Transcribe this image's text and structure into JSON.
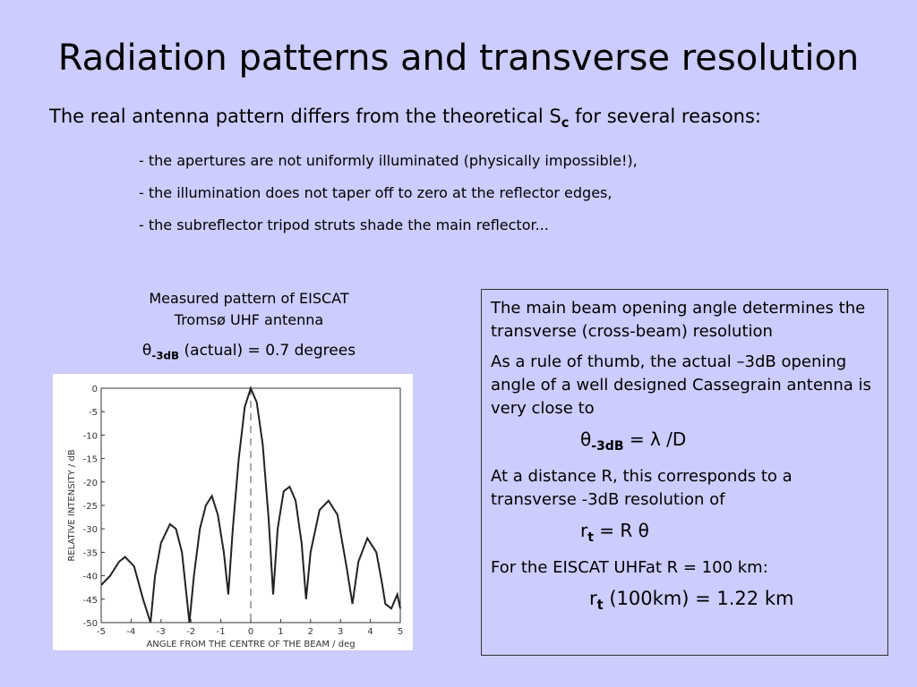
{
  "title": "Radiation patterns and transverse resolution",
  "intro": {
    "text": "The real antenna pattern differs from the theoretical S",
    "sub": "c",
    "tail": " for several reasons:"
  },
  "reasons": [
    "- the apertures are not uniformly illuminated (physically impossible!),",
    "- the illumination does not taper off to zero at the reflector edges,",
    "- the subreflector tripod struts shade the main reflector..."
  ],
  "figure": {
    "caption": [
      "Measured pattern of EISCAT",
      "Tromsø UHF antenna"
    ],
    "theta": {
      "symbol": "θ",
      "sub": "-3dB",
      "text": " (actual) = 0.7 degrees"
    }
  },
  "chart_data": {
    "type": "line",
    "xlabel": "ANGLE FROM THE CENTRE OF THE BEAM / deg",
    "ylabel": "RELATIVE INTENSITY / dB",
    "x": [
      -5,
      -4.7,
      -4.4,
      -4.2,
      -3.9,
      -3.6,
      -3.35,
      -3.2,
      -3.0,
      -2.7,
      -2.5,
      -2.3,
      -2.05,
      -1.9,
      -1.7,
      -1.5,
      -1.3,
      -1.1,
      -0.9,
      -0.75,
      -0.6,
      -0.4,
      -0.2,
      0,
      0.2,
      0.4,
      0.6,
      0.75,
      0.9,
      1.1,
      1.3,
      1.5,
      1.7,
      1.85,
      2.0,
      2.3,
      2.6,
      2.9,
      3.2,
      3.4,
      3.6,
      3.9,
      4.2,
      4.4,
      4.5,
      4.7,
      4.9,
      5
    ],
    "series": [
      {
        "color": "#222222",
        "values": [
          -42,
          -40,
          -37,
          -36,
          -38,
          -45,
          -50,
          -40,
          -33,
          -29,
          -30,
          -35,
          -50,
          -40,
          -30,
          -25,
          -23,
          -27,
          -35,
          -44,
          -30,
          -15,
          -4,
          0,
          -3,
          -12,
          -28,
          -44,
          -30,
          -22,
          -21,
          -24,
          -33,
          -45,
          -35,
          -26,
          -24,
          -27,
          -38,
          -46,
          -37,
          -32,
          -35,
          -42,
          -46,
          -47,
          -44,
          -47
        ]
      }
    ],
    "xlim": [
      -5,
      5
    ],
    "ylim": [
      -50,
      0
    ],
    "xticks": [
      -5,
      -4,
      -3,
      -2,
      -1,
      0,
      1,
      2,
      3,
      4,
      5
    ],
    "yticks": [
      0,
      -5,
      -10,
      -15,
      -20,
      -25,
      -30,
      -35,
      -40,
      -45,
      -50
    ]
  },
  "box": {
    "p1": "The main beam opening angle determines the transverse (cross-beam) resolution",
    "p2": "As a rule of thumb, the actual –3dB opening angle of a well designed Cassegrain antenna is very close to",
    "f1": {
      "a": "θ",
      "sub": "-3dB",
      "b": " =  λ /D"
    },
    "p3": "At a distance R, this corresponds to a transverse -3dB resolution of",
    "f2": {
      "a": "r",
      "sub": "t",
      "b": " = R θ"
    },
    "p4": "For the EISCAT UHFat R = 100 km:",
    "f3": {
      "a": "r",
      "sub": "t",
      "b": " (100km) = 1.22 km"
    }
  }
}
